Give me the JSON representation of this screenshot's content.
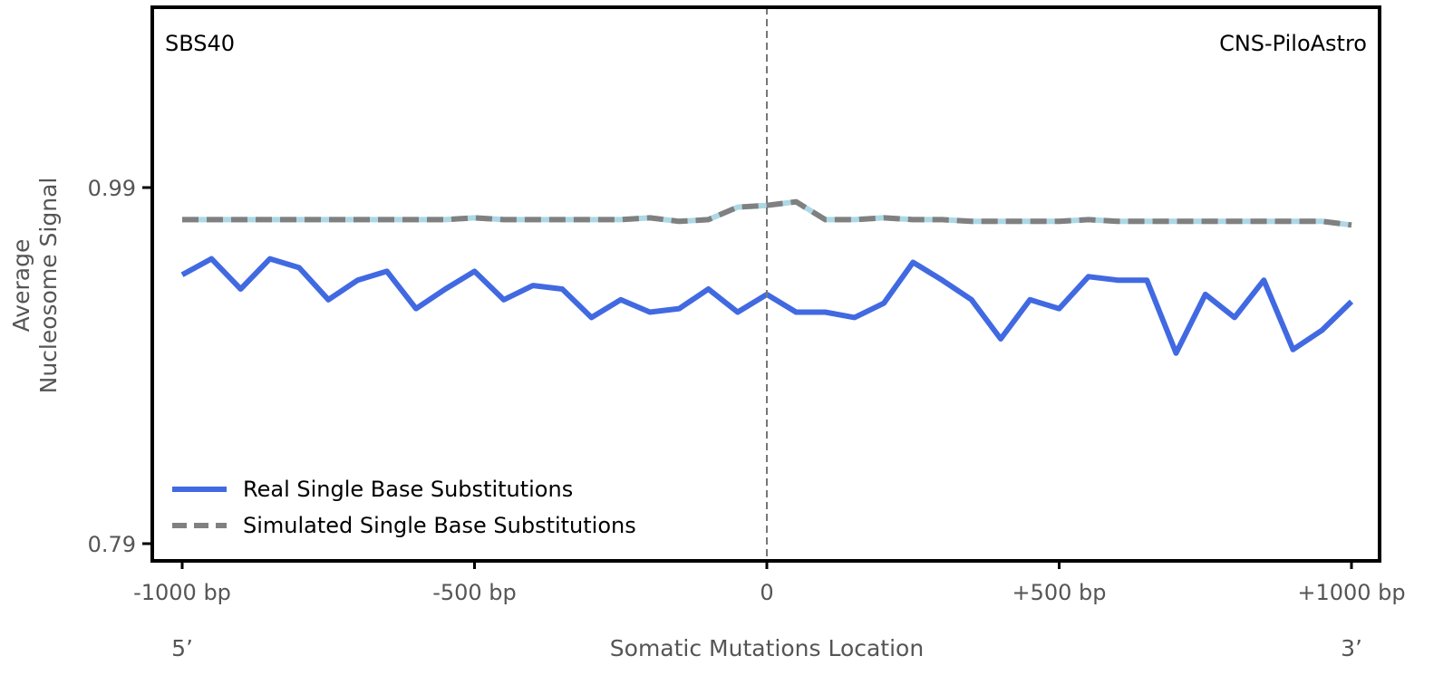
{
  "chart_data": {
    "type": "line",
    "title_left": "SBS40",
    "title_right": "CNS-PiloAstro",
    "xlabel": "Somatic Mutations Location",
    "ylabel_line1": "Average",
    "ylabel_line2": "Nucleosome Signal",
    "end_labels": {
      "left": "5’",
      "right": "3’"
    },
    "xlim": [
      -1000,
      1000
    ],
    "ylim": [
      0.79,
      0.99
    ],
    "x_ticks": [
      {
        "value": -1000,
        "label": "-1000 bp"
      },
      {
        "value": -500,
        "label": "-500 bp"
      },
      {
        "value": 0,
        "label": "0"
      },
      {
        "value": 500,
        "label": "+500 bp"
      },
      {
        "value": 1000,
        "label": "+1000 bp"
      }
    ],
    "y_ticks": [
      {
        "value": 0.99,
        "label": "0.99"
      },
      {
        "value": 0.79,
        "label": "0.79"
      }
    ],
    "reference_line_x": 0,
    "legend_position": "bottom-left",
    "x": [
      -1000,
      -950,
      -900,
      -850,
      -800,
      -750,
      -700,
      -650,
      -600,
      -550,
      -500,
      -450,
      -400,
      -350,
      -300,
      -250,
      -200,
      -150,
      -100,
      -50,
      0,
      50,
      100,
      150,
      200,
      250,
      300,
      350,
      400,
      450,
      500,
      550,
      600,
      650,
      700,
      750,
      800,
      850,
      900,
      950,
      1000
    ],
    "series": [
      {
        "name": "Real Single Base Substitutions",
        "color": "#4169E1",
        "style": "solid",
        "values": [
          0.941,
          0.95,
          0.933,
          0.95,
          0.945,
          0.927,
          0.938,
          0.943,
          0.922,
          0.933,
          0.943,
          0.927,
          0.935,
          0.933,
          0.917,
          0.927,
          0.92,
          0.922,
          0.933,
          0.92,
          0.93,
          0.92,
          0.92,
          0.917,
          0.925,
          0.948,
          0.938,
          0.927,
          0.905,
          0.927,
          0.922,
          0.94,
          0.938,
          0.938,
          0.897,
          0.93,
          0.917,
          0.938,
          0.899,
          0.91,
          0.926
        ]
      },
      {
        "name": "Simulated Single Base Substitutions",
        "color": "#808080",
        "underlay_color": "#ADD8E6",
        "style": "dashed",
        "values": [
          0.972,
          0.972,
          0.972,
          0.972,
          0.972,
          0.972,
          0.972,
          0.972,
          0.972,
          0.972,
          0.973,
          0.972,
          0.972,
          0.972,
          0.972,
          0.972,
          0.973,
          0.971,
          0.972,
          0.979,
          0.98,
          0.982,
          0.972,
          0.972,
          0.973,
          0.972,
          0.972,
          0.971,
          0.971,
          0.971,
          0.971,
          0.972,
          0.971,
          0.971,
          0.971,
          0.971,
          0.971,
          0.971,
          0.971,
          0.971,
          0.969
        ]
      }
    ]
  }
}
